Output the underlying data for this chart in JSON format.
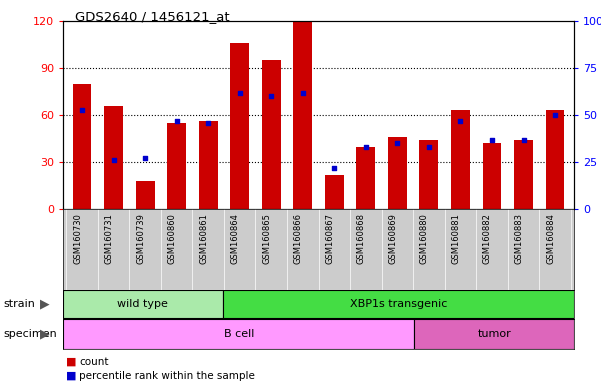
{
  "title": "GDS2640 / 1456121_at",
  "samples": [
    "GSM160730",
    "GSM160731",
    "GSM160739",
    "GSM160860",
    "GSM160861",
    "GSM160864",
    "GSM160865",
    "GSM160866",
    "GSM160867",
    "GSM160868",
    "GSM160869",
    "GSM160880",
    "GSM160881",
    "GSM160882",
    "GSM160883",
    "GSM160884"
  ],
  "counts": [
    80,
    66,
    18,
    55,
    56,
    106,
    95,
    120,
    22,
    40,
    46,
    44,
    63,
    42,
    44,
    63
  ],
  "percentile_ranks": [
    53,
    26,
    27,
    47,
    46,
    62,
    60,
    62,
    22,
    33,
    35,
    33,
    47,
    37,
    37,
    50
  ],
  "bar_color": "#cc0000",
  "dot_color": "#0000cc",
  "left_ylim": [
    0,
    120
  ],
  "right_ylim": [
    0,
    100
  ],
  "left_yticks": [
    0,
    30,
    60,
    90,
    120
  ],
  "right_yticks": [
    0,
    25,
    50,
    75,
    100
  ],
  "right_yticklabels": [
    "0",
    "25",
    "50",
    "75",
    "100%"
  ],
  "bar_width": 0.6,
  "strain_groups": [
    {
      "label": "wild type",
      "start": 0,
      "end": 5,
      "color": "#aaeaaa"
    },
    {
      "label": "XBP1s transgenic",
      "start": 5,
      "end": 16,
      "color": "#44dd44"
    }
  ],
  "specimen_groups": [
    {
      "label": "B cell",
      "start": 0,
      "end": 11,
      "color": "#ff99ff"
    },
    {
      "label": "tumor",
      "start": 11,
      "end": 16,
      "color": "#dd66bb"
    }
  ],
  "legend_count_color": "#cc0000",
  "legend_pct_color": "#0000cc"
}
